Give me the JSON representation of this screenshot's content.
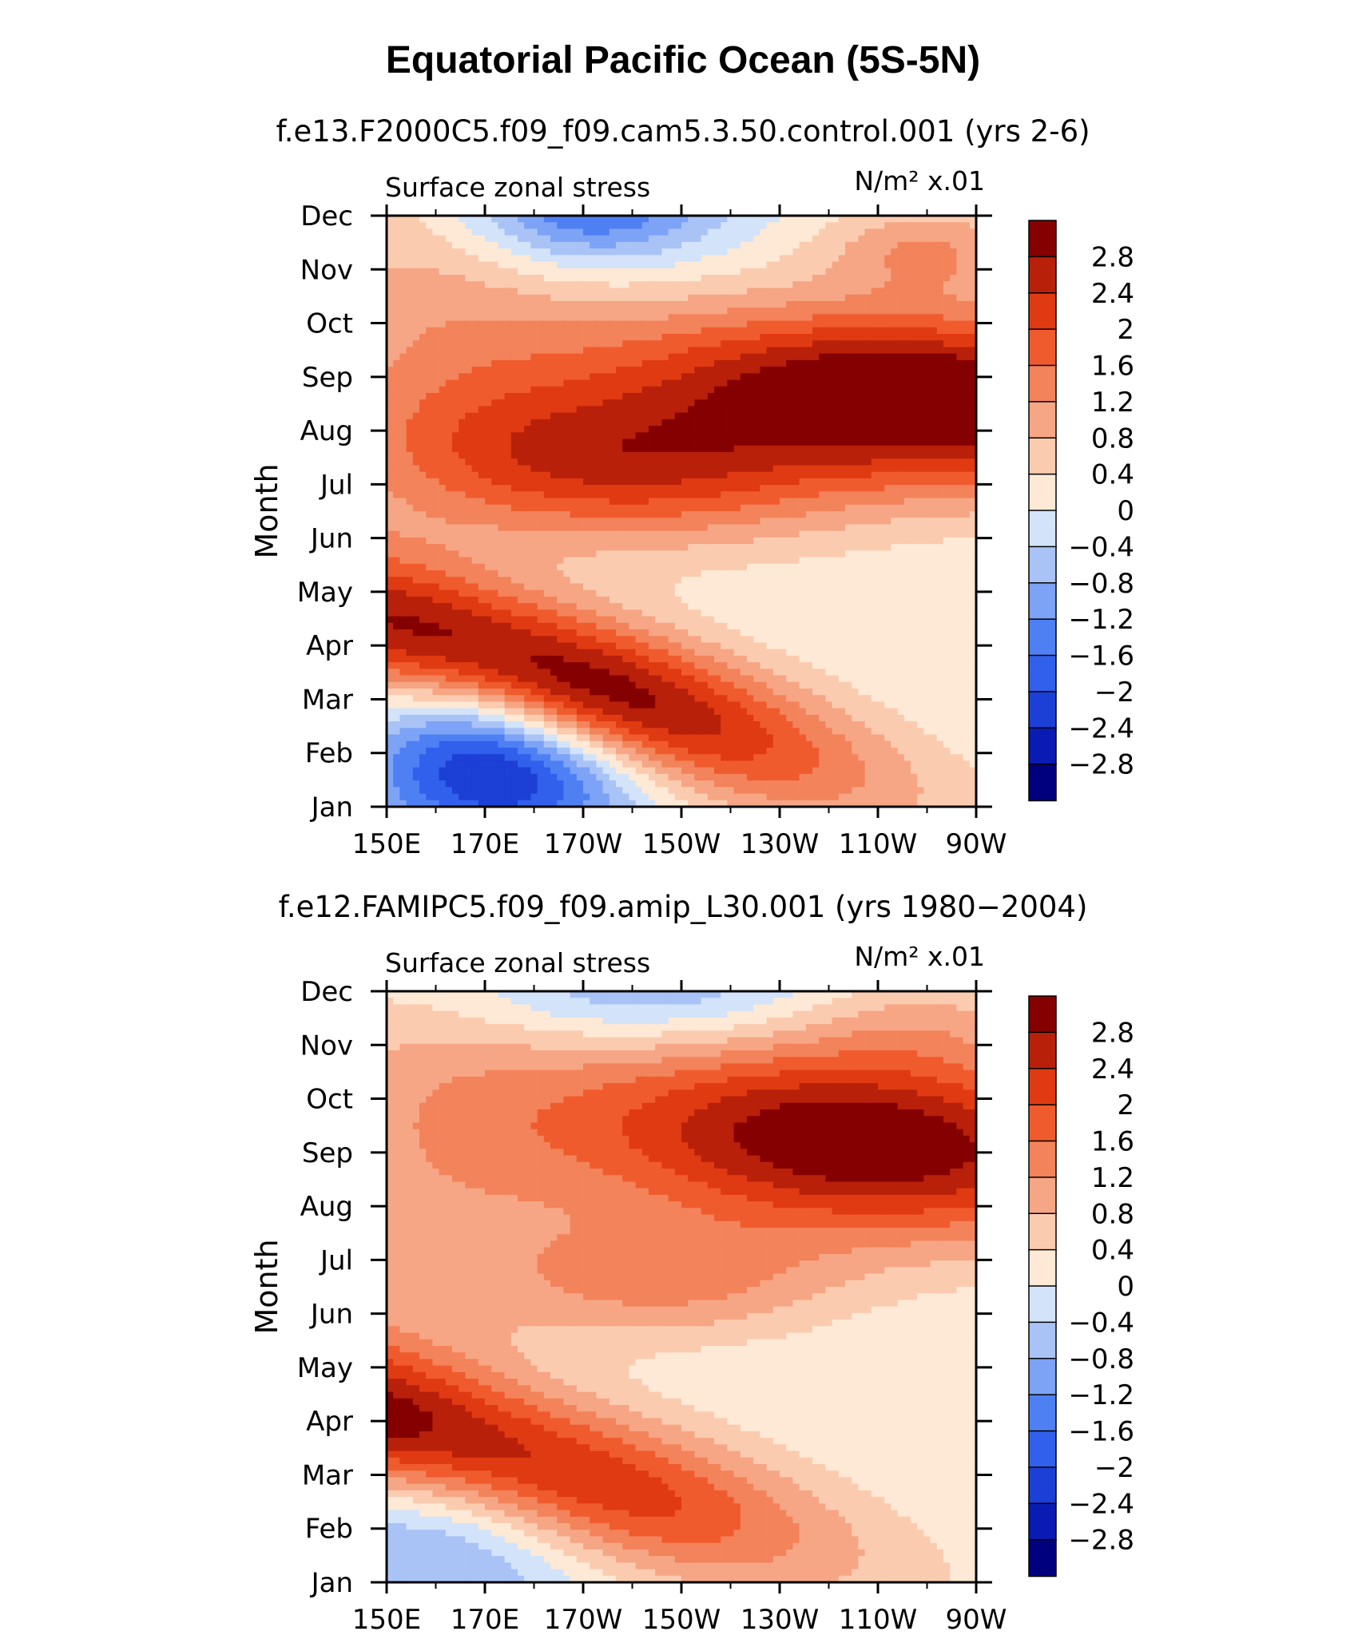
{
  "title": "Equatorial Pacific Ocean (5S-5N)",
  "colors": [
    "#00007f",
    "#0a1bb3",
    "#1c3fd6",
    "#3060ec",
    "#4e80f4",
    "#7da3f7",
    "#a9c3f6",
    "#d2e3fa",
    "#fde9d5",
    "#fbcbb0",
    "#f6a684",
    "#f3835a",
    "#f05b2e",
    "#e03a12",
    "#b8200a",
    "#850000"
  ],
  "chart_data": [
    {
      "type": "heatmap",
      "subtitle": "f.e13.F2000C5.f09_f09.cam5.3.50.control.001 (yrs 2-6)",
      "variable_label": "Surface zonal stress",
      "units_label": "N/m² x.01",
      "ylabel": "Month",
      "x_ticks": [
        "150E",
        "170E",
        "170W",
        "150W",
        "130W",
        "110W",
        "90W"
      ],
      "x_range": [
        150,
        270
      ],
      "y_ticks": [
        "Jan",
        "Feb",
        "Mar",
        "Apr",
        "May",
        "Jun",
        "Jul",
        "Aug",
        "Sep",
        "Oct",
        "Nov",
        "Dec"
      ],
      "colorbar_levels": [
        "2.8",
        "2.4",
        "2",
        "1.6",
        "1.2",
        "0.8",
        "0.4",
        "0",
        "−0.4",
        "−0.8",
        "−1.2",
        "−1.6",
        "−2",
        "−2.4",
        "−2.8"
      ],
      "features": [
        {
          "kind": "blob",
          "amp": 3.7,
          "lon": 180,
          "month": 2.5,
          "slon": 45,
          "smon": 1.0,
          "tilt": -0.28
        },
        {
          "kind": "blob",
          "amp": -1.5,
          "lon": 168,
          "month": 1.5,
          "slon": 16,
          "smon": 1.4,
          "tilt": 0
        },
        {
          "kind": "blob",
          "amp": -1.7,
          "lon": 180,
          "month": 0.6,
          "slon": 20,
          "smon": 0.9,
          "tilt": 0
        },
        {
          "kind": "blob",
          "amp": 2.0,
          "lon": 196,
          "month": 6.3,
          "slon": 32,
          "smon": 1.0,
          "tilt": -0.06
        },
        {
          "kind": "blob",
          "amp": 3.6,
          "lon": 260,
          "month": 7.6,
          "slon": 45,
          "smon": 1.15,
          "tilt": -0.06
        },
        {
          "kind": "blob",
          "amp": 0.9,
          "lon": 160,
          "month": 9.0,
          "slon": 25,
          "smon": 3.0,
          "tilt": 0
        },
        {
          "kind": "blob",
          "amp": -2.0,
          "lon": 190,
          "month": 11.2,
          "slon": 18,
          "smon": 0.8,
          "tilt": 0
        },
        {
          "kind": "blob",
          "amp": 1.1,
          "lon": 260,
          "month": 10.4,
          "slon": 15,
          "smon": 0.6,
          "tilt": 0
        }
      ]
    },
    {
      "type": "heatmap",
      "subtitle": "f.e12.FAMIPC5.f09_f09.amip_L30.001 (yrs 1980−2004)",
      "variable_label": "Surface zonal stress",
      "units_label": "N/m² x.01",
      "ylabel": "Month",
      "x_ticks": [
        "150E",
        "170E",
        "170W",
        "150W",
        "130W",
        "110W",
        "90W"
      ],
      "x_range": [
        150,
        270
      ],
      "y_ticks": [
        "Jan",
        "Feb",
        "Mar",
        "Apr",
        "May",
        "Jun",
        "Jul",
        "Aug",
        "Sep",
        "Oct",
        "Nov",
        "Dec"
      ],
      "colorbar_levels": [
        "2.8",
        "2.4",
        "2",
        "1.6",
        "1.2",
        "0.8",
        "0.4",
        "0",
        "−0.4",
        "−0.8",
        "−1.2",
        "−1.6",
        "−2",
        "−2.4",
        "−2.8"
      ],
      "features": [
        {
          "kind": "blob",
          "amp": 3.6,
          "lon": 160,
          "month": 2.7,
          "slon": 50,
          "smon": 1.05,
          "tilt": -0.25
        },
        {
          "kind": "blob",
          "amp": -1.5,
          "lon": 165,
          "month": 1.5,
          "slon": 22,
          "smon": 1.5,
          "tilt": 0
        },
        {
          "kind": "blob",
          "amp": 1.2,
          "lon": 208,
          "month": 5.6,
          "slon": 25,
          "smon": 0.8,
          "tilt": 0
        },
        {
          "kind": "blob",
          "amp": 3.3,
          "lon": 246,
          "month": 8.2,
          "slon": 42,
          "smon": 1.25,
          "tilt": -0.06
        },
        {
          "kind": "blob",
          "amp": 0.9,
          "lon": 160,
          "month": 8.0,
          "slon": 25,
          "smon": 3.0,
          "tilt": 0
        },
        {
          "kind": "blob",
          "amp": -1.0,
          "lon": 200,
          "month": 11.0,
          "slon": 28,
          "smon": 0.7,
          "tilt": 0
        },
        {
          "kind": "blob",
          "amp": 0.6,
          "lon": 258,
          "month": 10.5,
          "slon": 18,
          "smon": 0.7,
          "tilt": 0
        }
      ]
    }
  ]
}
